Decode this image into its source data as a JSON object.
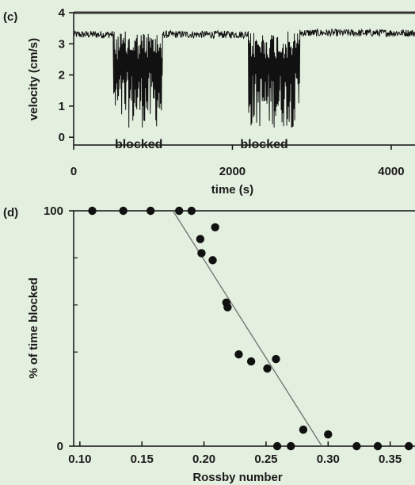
{
  "panels": [
    {
      "label": "(c)"
    },
    {
      "label": "(d)"
    }
  ],
  "chart_data": [
    {
      "type": "line",
      "xlabel": "time (s)",
      "ylabel": "velocity (cm/s)",
      "xlim": [
        0,
        4300
      ],
      "ylim": [
        -0.25,
        4
      ],
      "xticks": [
        0,
        2000,
        4000
      ],
      "xtick_labels": [
        "0",
        "2000",
        "4000"
      ],
      "yticks": [
        0,
        1,
        2,
        3,
        4
      ],
      "ytick_labels": [
        "0",
        "1",
        "2",
        "3",
        "4"
      ],
      "grid": false,
      "annotations": [
        {
          "text": "blocked",
          "x": 820,
          "y": -0.1
        },
        {
          "text": "blocked",
          "x": 2400,
          "y": -0.1
        }
      ],
      "series": [
        {
          "regimes": [
            {
              "x_start": 0,
              "x_end": 500,
              "state": "flowing",
              "mean": 3.3,
              "spread": 0.12
            },
            {
              "x_start": 500,
              "x_end": 1120,
              "state": "blocked",
              "low": 0.3,
              "high": 3.4
            },
            {
              "x_start": 1120,
              "x_end": 2200,
              "state": "flowing",
              "mean": 3.3,
              "spread": 0.12
            },
            {
              "x_start": 2200,
              "x_end": 2850,
              "state": "blocked",
              "low": 0.3,
              "high": 3.4
            },
            {
              "x_start": 2850,
              "x_end": 4300,
              "state": "flowing",
              "mean": 3.35,
              "spread": 0.12
            }
          ]
        }
      ],
      "color": "#111111"
    },
    {
      "type": "scatter",
      "xlabel": "Rossby number",
      "ylabel": "% of time blocked",
      "xlim": [
        0.095,
        0.37
      ],
      "ylim": [
        0,
        100
      ],
      "xticks": [
        0.1,
        0.15,
        0.2,
        0.25,
        0.3,
        0.35
      ],
      "xtick_labels": [
        "0.10",
        "0.15",
        "0.20",
        "0.25",
        "0.30",
        "0.35"
      ],
      "yticks": [
        0,
        100
      ],
      "ytick_labels": [
        "0",
        "100"
      ],
      "grid": false,
      "x": [
        0.11,
        0.135,
        0.157,
        0.18,
        0.19,
        0.197,
        0.198,
        0.207,
        0.209,
        0.218,
        0.219,
        0.228,
        0.238,
        0.251,
        0.258,
        0.259,
        0.27,
        0.28,
        0.3,
        0.323,
        0.34,
        0.365
      ],
      "y": [
        100,
        100,
        100,
        100,
        100,
        88,
        82,
        79,
        93,
        61,
        59,
        39,
        36,
        33,
        37,
        0,
        0,
        7,
        5,
        0,
        0,
        0
      ],
      "fit_line": {
        "x": [
          0.175,
          0.295
        ],
        "y": [
          100,
          0
        ]
      },
      "color": "#111111"
    }
  ]
}
